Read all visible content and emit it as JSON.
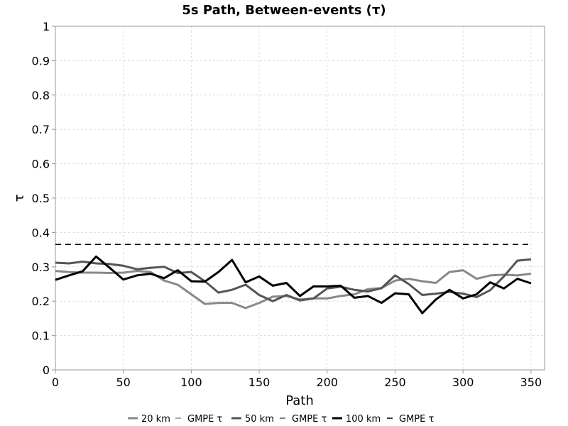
{
  "chart_data": {
    "type": "line",
    "title": "5s Path, Between-events (τ)",
    "xlabel": "Path",
    "ylabel": "τ",
    "xlim": [
      0,
      360
    ],
    "ylim": [
      0,
      1
    ],
    "xticks": [
      "0",
      "50",
      "100",
      "150",
      "200",
      "250",
      "300",
      "350"
    ],
    "yticks": [
      "0",
      "0.1",
      "0.2",
      "0.3",
      "0.4",
      "0.5",
      "0.6",
      "0.7",
      "0.8",
      "0.9",
      "1"
    ],
    "grid": true,
    "legend_position": "bottom",
    "x": [
      0,
      10,
      20,
      30,
      40,
      50,
      60,
      70,
      80,
      90,
      100,
      110,
      120,
      130,
      140,
      150,
      160,
      170,
      180,
      190,
      200,
      210,
      220,
      230,
      240,
      250,
      260,
      270,
      280,
      290,
      300,
      310,
      320,
      330,
      340,
      350
    ],
    "series": [
      {
        "name": "20 km",
        "color": "#888888",
        "width": 3,
        "dash": "",
        "values": [
          0.288,
          0.285,
          0.283,
          0.283,
          0.282,
          0.283,
          0.288,
          0.285,
          0.26,
          0.248,
          0.22,
          0.192,
          0.195,
          0.195,
          0.18,
          0.195,
          0.213,
          0.215,
          0.205,
          0.208,
          0.208,
          0.215,
          0.22,
          0.235,
          0.238,
          0.26,
          0.265,
          0.258,
          0.253,
          0.285,
          0.29,
          0.265,
          0.275,
          0.277,
          0.275,
          0.28
        ]
      },
      {
        "name": "GMPE τ",
        "color": "#888888",
        "width": 1.5,
        "dash": "8,6",
        "values": [
          0.365,
          0.365,
          0.365,
          0.365,
          0.365,
          0.365,
          0.365,
          0.365,
          0.365,
          0.365,
          0.365,
          0.365,
          0.365,
          0.365,
          0.365,
          0.365,
          0.365,
          0.365,
          0.365,
          0.365,
          0.365,
          0.365,
          0.365,
          0.365,
          0.365,
          0.365,
          0.365,
          0.365,
          0.365,
          0.365,
          0.365,
          0.365,
          0.365,
          0.365,
          0.365,
          0.365
        ]
      },
      {
        "name": "50 km",
        "color": "#555555",
        "width": 3,
        "dash": "",
        "values": [
          0.312,
          0.31,
          0.315,
          0.31,
          0.308,
          0.303,
          0.293,
          0.297,
          0.3,
          0.282,
          0.285,
          0.258,
          0.225,
          0.233,
          0.248,
          0.218,
          0.2,
          0.218,
          0.202,
          0.208,
          0.237,
          0.242,
          0.233,
          0.228,
          0.238,
          0.275,
          0.25,
          0.218,
          0.222,
          0.227,
          0.222,
          0.212,
          0.232,
          0.272,
          0.318,
          0.322
        ]
      },
      {
        "name": "GMPE τ",
        "color": "#555555",
        "width": 1.5,
        "dash": "8,6",
        "values": [
          0.365,
          0.365,
          0.365,
          0.365,
          0.365,
          0.365,
          0.365,
          0.365,
          0.365,
          0.365,
          0.365,
          0.365,
          0.365,
          0.365,
          0.365,
          0.365,
          0.365,
          0.365,
          0.365,
          0.365,
          0.365,
          0.365,
          0.365,
          0.365,
          0.365,
          0.365,
          0.365,
          0.365,
          0.365,
          0.365,
          0.365,
          0.365,
          0.365,
          0.365,
          0.365,
          0.365
        ]
      },
      {
        "name": "100 km",
        "color": "#000000",
        "width": 3,
        "dash": "",
        "values": [
          0.262,
          0.275,
          0.287,
          0.33,
          0.297,
          0.263,
          0.275,
          0.28,
          0.267,
          0.29,
          0.258,
          0.257,
          0.285,
          0.32,
          0.255,
          0.272,
          0.245,
          0.253,
          0.215,
          0.243,
          0.243,
          0.245,
          0.21,
          0.215,
          0.195,
          0.223,
          0.22,
          0.165,
          0.205,
          0.233,
          0.208,
          0.22,
          0.255,
          0.237,
          0.265,
          0.252
        ]
      },
      {
        "name": "GMPE τ",
        "color": "#000000",
        "width": 1.5,
        "dash": "8,6",
        "values": [
          0.365,
          0.365,
          0.365,
          0.365,
          0.365,
          0.365,
          0.365,
          0.365,
          0.365,
          0.365,
          0.365,
          0.365,
          0.365,
          0.365,
          0.365,
          0.365,
          0.365,
          0.365,
          0.365,
          0.365,
          0.365,
          0.365,
          0.365,
          0.365,
          0.365,
          0.365,
          0.365,
          0.365,
          0.365,
          0.365,
          0.365,
          0.365,
          0.365,
          0.365,
          0.365,
          0.365
        ]
      }
    ]
  }
}
